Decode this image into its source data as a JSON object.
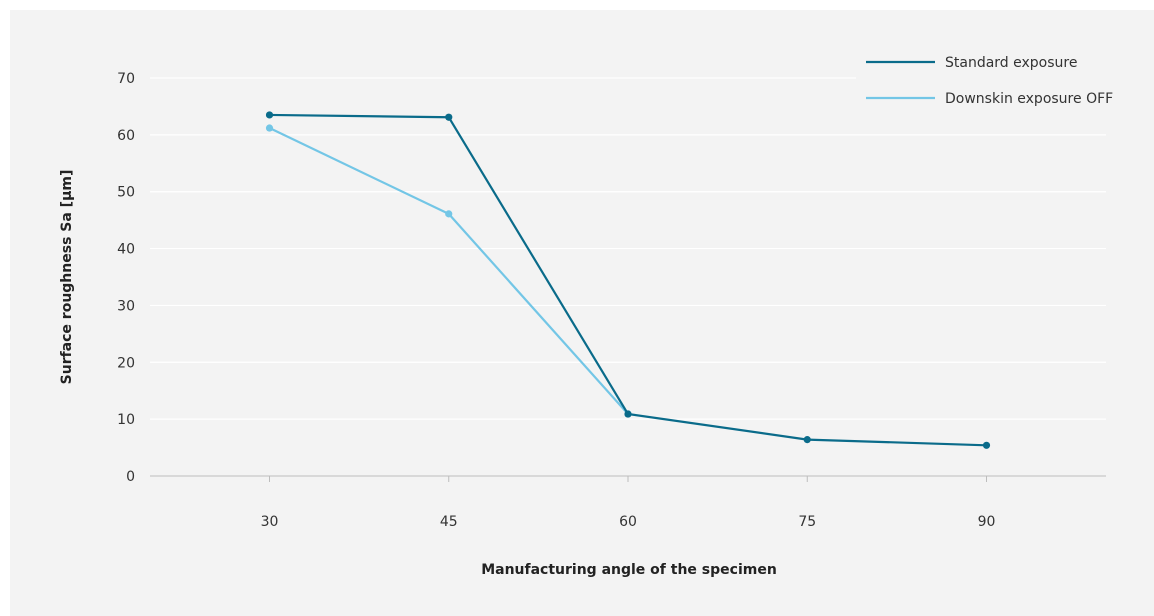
{
  "chart_data": {
    "type": "line",
    "title": "",
    "xlabel": "Manufacturing angle of the specimen",
    "ylabel": "Surface roughness Sa [µm]",
    "categories": [
      "30",
      "45",
      "60",
      "75",
      "90"
    ],
    "x": [
      30,
      45,
      60,
      75,
      90
    ],
    "xlim": [
      20,
      100
    ],
    "ylim": [
      0,
      70
    ],
    "yticks": [
      "0",
      "10",
      "20",
      "30",
      "40",
      "50",
      "60",
      "70"
    ],
    "ytick_values": [
      0,
      10,
      20,
      30,
      40,
      50,
      60,
      70
    ],
    "grid": "horizontal",
    "legend_position": "top-right",
    "series": [
      {
        "name": "Standard exposure",
        "color": "#0a6b8a",
        "values": [
          63.5,
          63.1,
          10.9,
          6.4,
          5.4
        ]
      },
      {
        "name": "Downskin exposure OFF",
        "color": "#73c6e6",
        "values": [
          61.2,
          46.1,
          10.9,
          null,
          null
        ]
      }
    ]
  }
}
